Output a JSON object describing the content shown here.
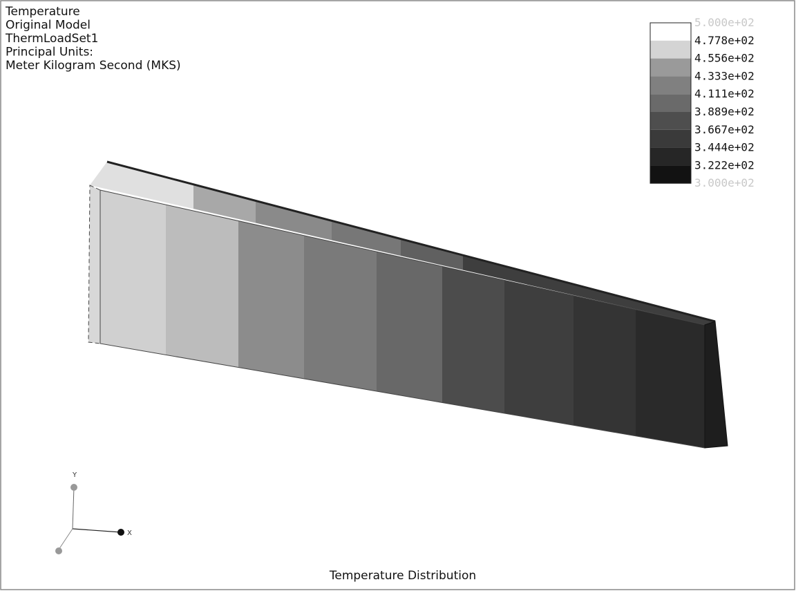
{
  "header": {
    "lines": [
      "Temperature",
      "Original Model",
      "ThermLoadSet1",
      "Principal Units:",
      "Meter Kilogram Second (MKS)"
    ]
  },
  "legend": {
    "labels": [
      "5.000e+02",
      "4.778e+02",
      "4.556e+02",
      "4.333e+02",
      "4.111e+02",
      "3.889e+02",
      "3.667e+02",
      "3.444e+02",
      "3.222e+02",
      "3.000e+02"
    ],
    "colors": [
      "#ffffff",
      "#d4d4d4",
      "#9a9a9a",
      "#808080",
      "#6a6a6a",
      "#4e4e4e",
      "#3a3a3a",
      "#262626",
      "#121212"
    ]
  },
  "axes": {
    "y": "Y",
    "x": "X"
  },
  "caption": "Temperature Distribution"
}
